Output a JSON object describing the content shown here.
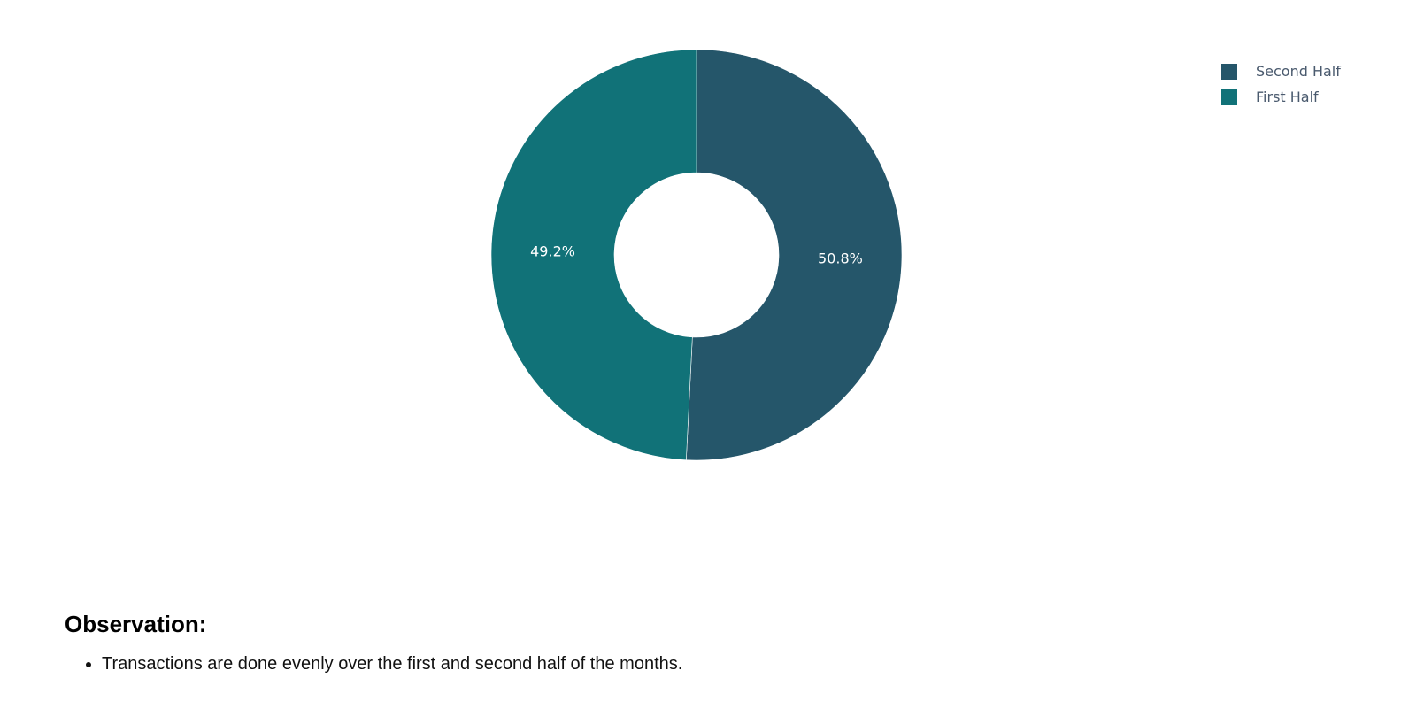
{
  "chart_data": {
    "type": "pie",
    "hole": true,
    "direction": "clockwise",
    "categories": [
      "Second Half",
      "First Half"
    ],
    "values": [
      50.8,
      49.2
    ],
    "labels": [
      "50.8%",
      "49.2%"
    ],
    "colors": [
      "#25566a",
      "#117278"
    ],
    "title": "",
    "legend_position": "top-right"
  },
  "legend": {
    "items": [
      {
        "label": "Second Half",
        "color": "#25566a"
      },
      {
        "label": "First Half",
        "color": "#117278"
      }
    ]
  },
  "observation": {
    "heading": "Observation:",
    "bullets": [
      "Transactions are done evenly over the first and second half of the months."
    ]
  }
}
